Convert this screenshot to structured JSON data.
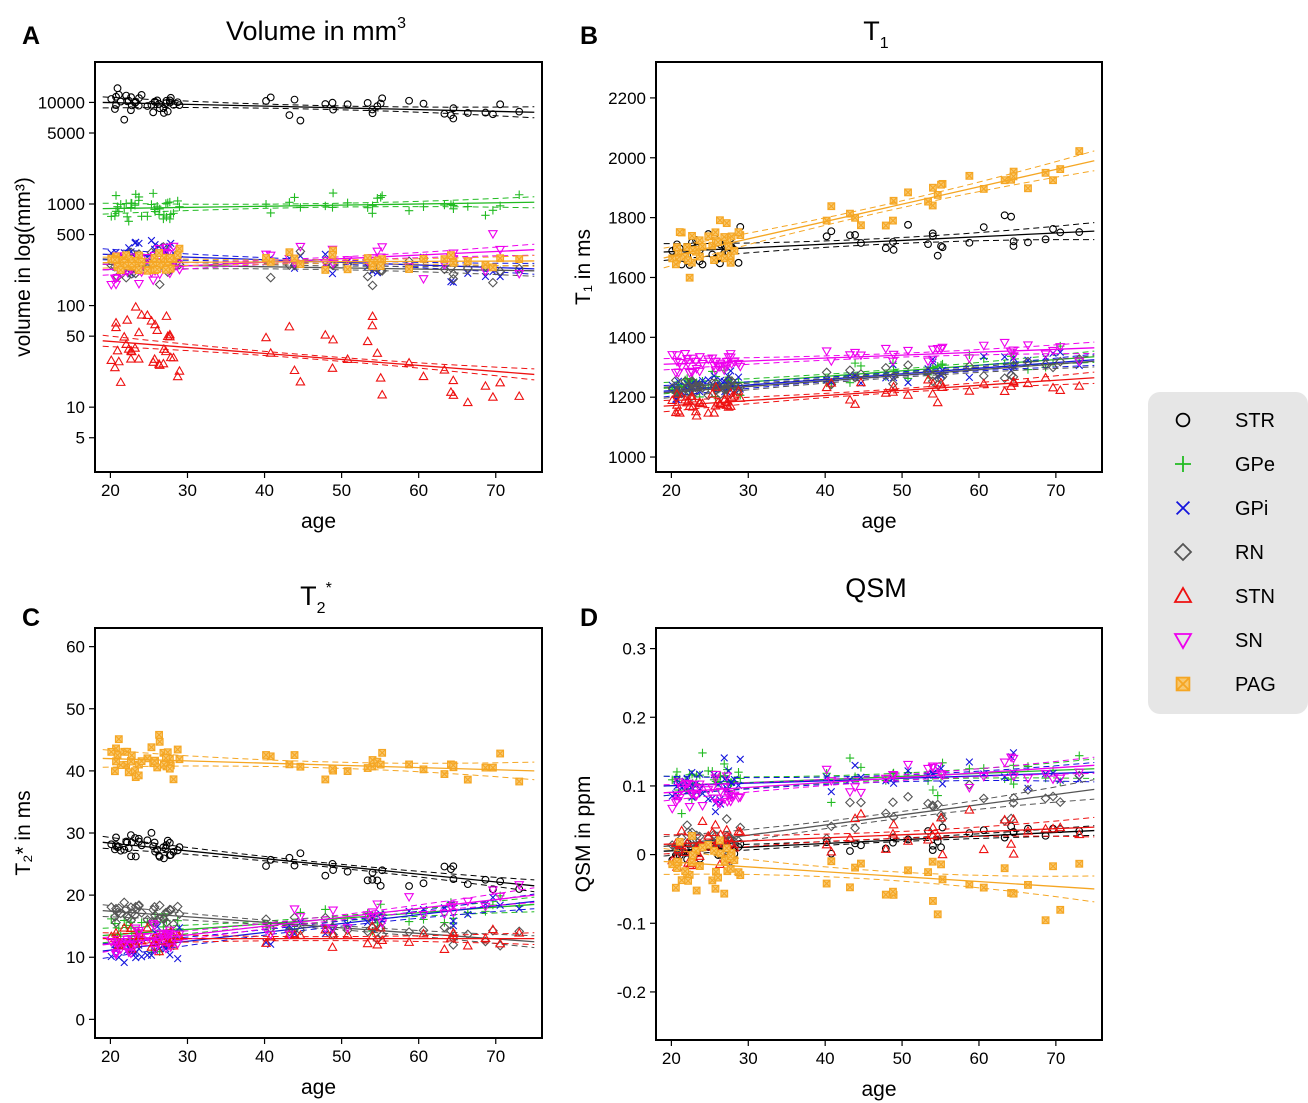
{
  "legend": {
    "items": [
      {
        "name": "STR",
        "color": "#000000",
        "symbol": "circle"
      },
      {
        "name": "GPe",
        "color": "#22bb22",
        "symbol": "plus"
      },
      {
        "name": "GPi",
        "color": "#1515dd",
        "symbol": "cross"
      },
      {
        "name": "RN",
        "color": "#555555",
        "symbol": "diamond"
      },
      {
        "name": "STN",
        "color": "#ee1111",
        "symbol": "triangle-up"
      },
      {
        "name": "SN",
        "color": "#ee00ee",
        "symbol": "triangle-down"
      },
      {
        "name": "PAG",
        "color": "#f5a623",
        "symbol": "square-x"
      }
    ]
  },
  "chart_data": [
    {
      "type": "scatter",
      "panel": "A",
      "title": "Volume in mm",
      "title_superscript": "3",
      "xlabel": "age",
      "ylabel": "volume in log(mm³)",
      "yscale": "log",
      "xlim": [
        18,
        76
      ],
      "ylim": [
        2.3,
        25000
      ],
      "xticks": [
        20,
        30,
        40,
        50,
        60,
        70
      ],
      "yticks": [
        5,
        10,
        50,
        100,
        500,
        1000,
        5000,
        10000
      ],
      "series": [
        {
          "name": "STR",
          "line": [
            [
              19,
              10000
            ],
            [
              75,
              8000
            ]
          ],
          "spread": 0.12
        },
        {
          "name": "GPe",
          "line": [
            [
              19,
              900
            ],
            [
              75,
              1040
            ]
          ],
          "spread": 0.12
        },
        {
          "name": "GPi",
          "line": [
            [
              19,
              320
            ],
            [
              75,
              230
            ]
          ],
          "spread": 0.14
        },
        {
          "name": "RN",
          "line": [
            [
              19,
              255
            ],
            [
              75,
              220
            ]
          ],
          "spread": 0.14
        },
        {
          "name": "STN",
          "line": [
            [
              19,
              45
            ],
            [
              75,
              21
            ]
          ],
          "spread": 0.35
        },
        {
          "name": "SN",
          "line": [
            [
              19,
              225
            ],
            [
              75,
              355
            ]
          ],
          "spread": 0.18
        },
        {
          "name": "PAG",
          "line": [
            [
              19,
              265
            ],
            [
              75,
              275
            ]
          ],
          "spread": 0.1
        }
      ]
    },
    {
      "type": "scatter",
      "panel": "B",
      "title": "T",
      "title_subscript": "1",
      "xlabel": "age",
      "ylabel": "T₁ in ms",
      "yscale": "linear",
      "xlim": [
        18,
        76
      ],
      "ylim": [
        950,
        2320
      ],
      "xticks": [
        20,
        30,
        40,
        50,
        60,
        70
      ],
      "yticks": [
        1000,
        1200,
        1400,
        1600,
        1800,
        2000,
        2200
      ],
      "series": [
        {
          "name": "STR",
          "line": [
            [
              19,
              1685
            ],
            [
              75,
              1755
            ]
          ],
          "spread": 60
        },
        {
          "name": "GPe",
          "line": [
            [
              19,
              1230
            ],
            [
              75,
              1335
            ]
          ],
          "spread": 40
        },
        {
          "name": "GPi",
          "line": [
            [
              19,
              1220
            ],
            [
              75,
              1325
            ]
          ],
          "spread": 40
        },
        {
          "name": "RN",
          "line": [
            [
              19,
              1215
            ],
            [
              75,
              1320
            ]
          ],
          "spread": 40
        },
        {
          "name": "STN",
          "line": [
            [
              19,
              1170
            ],
            [
              75,
              1265
            ]
          ],
          "spread": 40
        },
        {
          "name": "SN",
          "line": [
            [
              19,
              1310
            ],
            [
              75,
              1365
            ]
          ],
          "spread": 40
        },
        {
          "name": "PAG",
          "line": [
            [
              19,
              1665
            ],
            [
              75,
              1990
            ]
          ],
          "spread": 70
        }
      ]
    },
    {
      "type": "scatter",
      "panel": "C",
      "title": "T",
      "title_subscript": "2",
      "title_superscript": "*",
      "xlabel": "age",
      "ylabel": "T₂* in ms",
      "yscale": "linear",
      "xlim": [
        18,
        76
      ],
      "ylim": [
        -3,
        63
      ],
      "xticks": [
        20,
        30,
        40,
        50,
        60,
        70
      ],
      "yticks": [
        0,
        10,
        20,
        30,
        40,
        50,
        60
      ],
      "series": [
        {
          "name": "STR",
          "line": [
            [
              19,
              28.5
            ],
            [
              75,
              21.5
            ]
          ],
          "spread": 2
        },
        {
          "name": "GPe",
          "line": [
            [
              19,
              13.5
            ],
            [
              75,
              18.5
            ]
          ],
          "spread": 2.5
        },
        {
          "name": "GPi",
          "line": [
            [
              19,
              11
            ],
            [
              75,
              19
            ]
          ],
          "spread": 2.5
        },
        {
          "name": "RN",
          "line": [
            [
              19,
              17.5
            ],
            [
              75,
              12.5
            ]
          ],
          "spread": 2
        },
        {
          "name": "STN",
          "line": [
            [
              19,
              13
            ],
            [
              75,
              13
            ]
          ],
          "spread": 2
        },
        {
          "name": "SN",
          "line": [
            [
              19,
              12
            ],
            [
              75,
              20
            ]
          ],
          "spread": 2.5
        },
        {
          "name": "PAG",
          "line": [
            [
              19,
              42
            ],
            [
              75,
              40
            ]
          ],
          "spread": 3
        }
      ]
    },
    {
      "type": "scatter",
      "panel": "D",
      "title": "QSM",
      "xlabel": "age",
      "ylabel": "QSM in ppm",
      "yscale": "linear",
      "xlim": [
        18,
        76
      ],
      "ylim": [
        -0.27,
        0.33
      ],
      "xticks": [
        20,
        30,
        40,
        50,
        60,
        70
      ],
      "yticks": [
        -0.2,
        -0.1,
        0.0,
        0.1,
        0.2,
        0.3
      ],
      "series": [
        {
          "name": "STR",
          "line": [
            [
              19,
              0.005
            ],
            [
              75,
              0.035
            ]
          ],
          "spread": 0.015
        },
        {
          "name": "GPe",
          "line": [
            [
              19,
              0.1
            ],
            [
              75,
              0.125
            ]
          ],
          "spread": 0.03
        },
        {
          "name": "GPi",
          "line": [
            [
              19,
              0.1
            ],
            [
              75,
              0.12
            ]
          ],
          "spread": 0.03
        },
        {
          "name": "RN",
          "line": [
            [
              19,
              0.012
            ],
            [
              75,
              0.095
            ]
          ],
          "spread": 0.03
        },
        {
          "name": "STN",
          "line": [
            [
              19,
              0.015
            ],
            [
              75,
              0.04
            ]
          ],
          "spread": 0.03
        },
        {
          "name": "SN",
          "line": [
            [
              19,
              0.09
            ],
            [
              75,
              0.13
            ]
          ],
          "spread": 0.025
        },
        {
          "name": "PAG",
          "line": [
            [
              19,
              -0.01
            ],
            [
              75,
              -0.05
            ]
          ],
          "spread": 0.04
        }
      ]
    }
  ]
}
